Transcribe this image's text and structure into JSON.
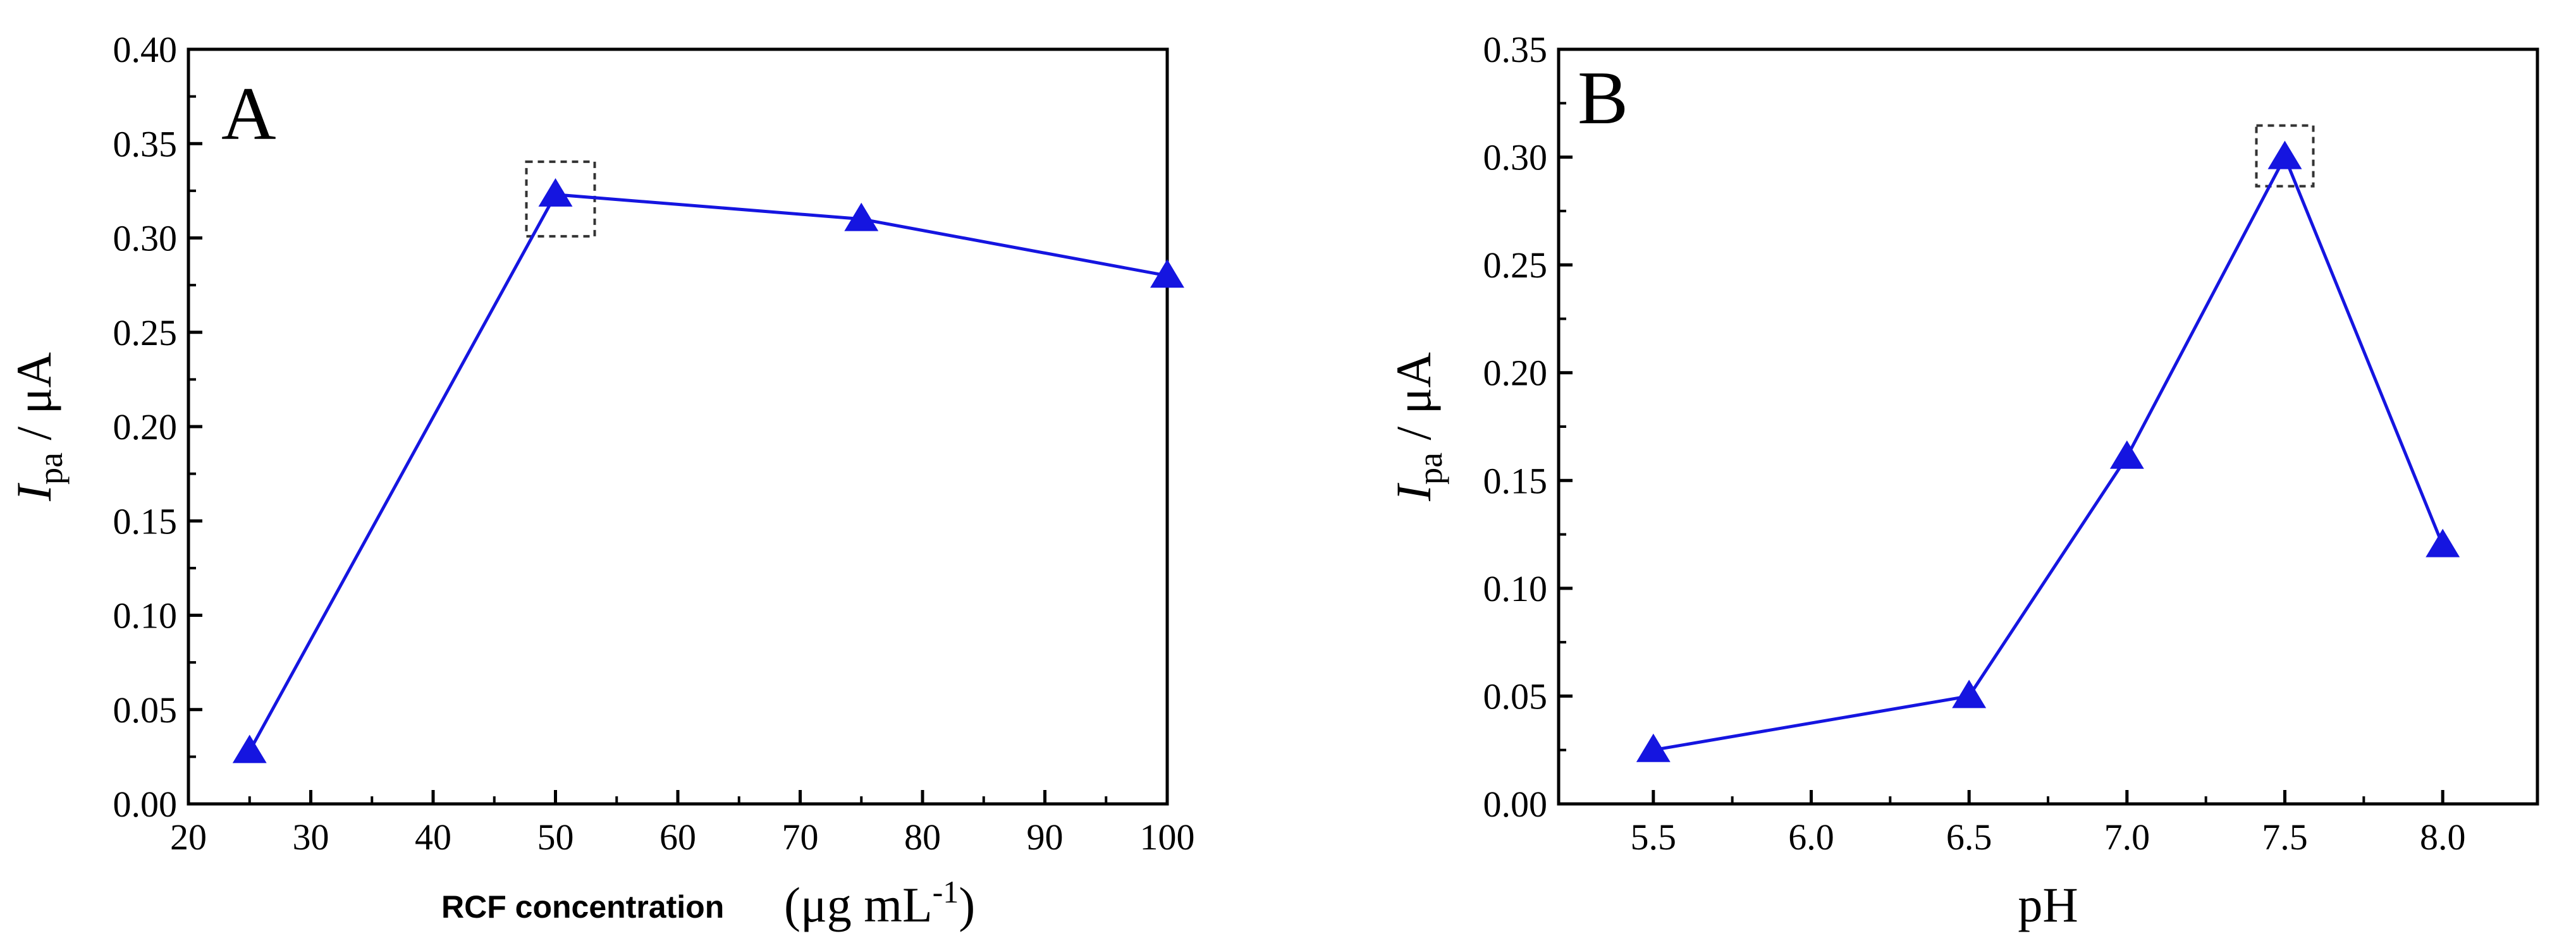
{
  "colors": {
    "series": "#1515e0",
    "axis": "#000000",
    "highlight_box": "#333333"
  },
  "chart_data": [
    {
      "type": "line",
      "panel_label": "A",
      "x": [
        25,
        50,
        75,
        100
      ],
      "series": [
        {
          "name": "Ipa",
          "values": [
            0.028,
            0.323,
            0.31,
            0.28
          ]
        }
      ],
      "xlim": [
        20,
        100
      ],
      "ylim": [
        0.0,
        0.4
      ],
      "xticks": [
        "20",
        "30",
        "40",
        "50",
        "60",
        "70",
        "80",
        "90",
        "100"
      ],
      "yticks": [
        "0.00",
        "0.05",
        "0.10",
        "0.15",
        "0.20",
        "0.25",
        "0.30",
        "0.35",
        "0.40"
      ],
      "xlabel": {
        "prefix": "RCF concentration",
        "unit_open": "(μg mL",
        "unit_sup": "-1",
        "unit_close": ")"
      },
      "ylabel": {
        "symbol": "I",
        "subscript": "pa",
        "unit": " / μA"
      },
      "highlight": {
        "x": 50,
        "y": 0.323
      },
      "marker": "triangle"
    },
    {
      "type": "line",
      "panel_label": "B",
      "x": [
        5.5,
        6.5,
        7.0,
        7.5,
        8.0
      ],
      "series": [
        {
          "name": "Ipa",
          "values": [
            0.025,
            0.05,
            0.161,
            0.3,
            0.12
          ]
        }
      ],
      "xlim": [
        5.2,
        8.3
      ],
      "ylim": [
        0.0,
        0.35
      ],
      "xticks": [
        "5.5",
        "6.0",
        "6.5",
        "7.0",
        "7.5",
        "8.0"
      ],
      "yticks": [
        "0.00",
        "0.05",
        "0.10",
        "0.15",
        "0.20",
        "0.25",
        "0.30",
        "0.35"
      ],
      "xlabel": {
        "text": "pH"
      },
      "ylabel": {
        "symbol": "I",
        "subscript": "pa",
        "unit": " / μA"
      },
      "highlight": {
        "x": 7.5,
        "y": 0.3
      },
      "marker": "triangle"
    }
  ]
}
